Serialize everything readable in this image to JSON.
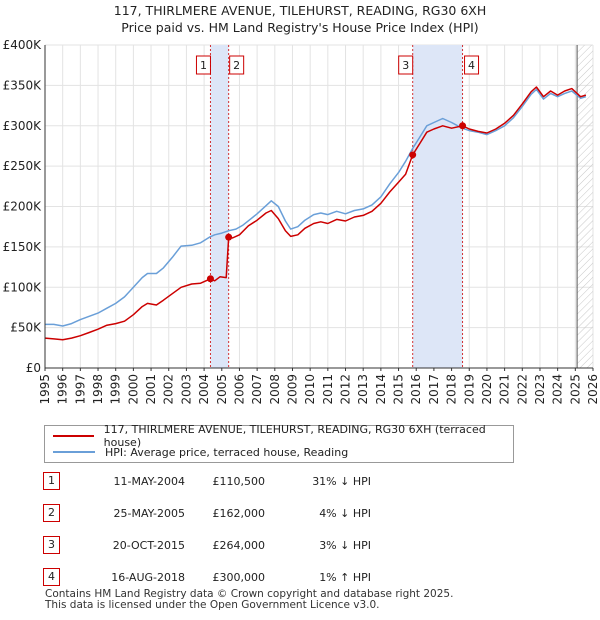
{
  "chart_data": {
    "type": "line",
    "title_line1": "117, THIRLMERE AVENUE, TILEHURST, READING, RG30 6XH",
    "title_line2": "Price paid vs. HM Land Registry's House Price Index (HPI)",
    "xlim": [
      1995,
      2026
    ],
    "ylim": [
      0,
      400000
    ],
    "y_ticks": [
      {
        "value": 0,
        "label": "£0"
      },
      {
        "value": 50000,
        "label": "£50K"
      },
      {
        "value": 100000,
        "label": "£100K"
      },
      {
        "value": 150000,
        "label": "£150K"
      },
      {
        "value": 200000,
        "label": "£200K"
      },
      {
        "value": 250000,
        "label": "£250K"
      },
      {
        "value": 300000,
        "label": "£300K"
      },
      {
        "value": 350000,
        "label": "£350K"
      },
      {
        "value": 400000,
        "label": "£400K"
      }
    ],
    "x_ticks": [
      "1995",
      "1996",
      "1997",
      "1998",
      "1999",
      "2000",
      "2001",
      "2002",
      "2003",
      "2004",
      "2005",
      "2006",
      "2007",
      "2008",
      "2009",
      "2010",
      "2011",
      "2012",
      "2013",
      "2014",
      "2015",
      "2016",
      "2017",
      "2018",
      "2019",
      "2020",
      "2021",
      "2022",
      "2023",
      "2024",
      "2025",
      "2026"
    ],
    "series": [
      {
        "name": "117, THIRLMERE AVENUE, TILEHURST, READING, RG30 6XH (terraced house)",
        "color": "#cc0000",
        "points": [
          [
            1995.0,
            37000
          ],
          [
            1995.5,
            36000
          ],
          [
            1996.0,
            35000
          ],
          [
            1996.5,
            37000
          ],
          [
            1997.0,
            40000
          ],
          [
            1997.5,
            44000
          ],
          [
            1998.0,
            48000
          ],
          [
            1998.5,
            53000
          ],
          [
            1999.0,
            55000
          ],
          [
            1999.5,
            58000
          ],
          [
            2000.0,
            66000
          ],
          [
            2000.5,
            76000
          ],
          [
            2000.8,
            80000
          ],
          [
            2001.3,
            78000
          ],
          [
            2001.7,
            84000
          ],
          [
            2002.2,
            92000
          ],
          [
            2002.7,
            100000
          ],
          [
            2003.3,
            104000
          ],
          [
            2003.8,
            105000
          ],
          [
            2004.36,
            110500
          ],
          [
            2004.6,
            108000
          ],
          [
            2004.9,
            113000
          ],
          [
            2005.25,
            112000
          ],
          [
            2005.39,
            162000
          ],
          [
            2005.6,
            161000
          ],
          [
            2006.0,
            165000
          ],
          [
            2006.5,
            176000
          ],
          [
            2007.0,
            183000
          ],
          [
            2007.5,
            192000
          ],
          [
            2007.8,
            195000
          ],
          [
            2008.2,
            185000
          ],
          [
            2008.6,
            170000
          ],
          [
            2008.9,
            163000
          ],
          [
            2009.3,
            165000
          ],
          [
            2009.7,
            173000
          ],
          [
            2010.2,
            179000
          ],
          [
            2010.6,
            181000
          ],
          [
            2011.0,
            179000
          ],
          [
            2011.5,
            184000
          ],
          [
            2012.0,
            182000
          ],
          [
            2012.5,
            187000
          ],
          [
            2013.0,
            189000
          ],
          [
            2013.5,
            194000
          ],
          [
            2014.0,
            204000
          ],
          [
            2014.5,
            218000
          ],
          [
            2015.0,
            230000
          ],
          [
            2015.4,
            240000
          ],
          [
            2015.8,
            264000
          ],
          [
            2016.2,
            278000
          ],
          [
            2016.6,
            292000
          ],
          [
            2017.0,
            296000
          ],
          [
            2017.5,
            300000
          ],
          [
            2018.0,
            297000
          ],
          [
            2018.62,
            300000
          ],
          [
            2019.0,
            296000
          ],
          [
            2019.5,
            293000
          ],
          [
            2020.0,
            291000
          ],
          [
            2020.5,
            296000
          ],
          [
            2021.0,
            303000
          ],
          [
            2021.5,
            313000
          ],
          [
            2022.0,
            327000
          ],
          [
            2022.5,
            342000
          ],
          [
            2022.8,
            348000
          ],
          [
            2023.2,
            336000
          ],
          [
            2023.6,
            343000
          ],
          [
            2024.0,
            338000
          ],
          [
            2024.4,
            343000
          ],
          [
            2024.8,
            346000
          ],
          [
            2025.3,
            336000
          ],
          [
            2025.6,
            338000
          ]
        ]
      },
      {
        "name": "HPI: Average price, terraced house, Reading",
        "color": "#6a9fd8",
        "points": [
          [
            1995.0,
            54000
          ],
          [
            1995.5,
            54000
          ],
          [
            1996.0,
            52000
          ],
          [
            1996.5,
            55000
          ],
          [
            1997.0,
            60000
          ],
          [
            1997.5,
            64000
          ],
          [
            1998.0,
            68000
          ],
          [
            1998.5,
            74000
          ],
          [
            1999.0,
            80000
          ],
          [
            1999.5,
            88000
          ],
          [
            2000.0,
            100000
          ],
          [
            2000.5,
            112000
          ],
          [
            2000.8,
            117000
          ],
          [
            2001.3,
            117000
          ],
          [
            2001.7,
            124000
          ],
          [
            2002.2,
            137000
          ],
          [
            2002.7,
            151000
          ],
          [
            2003.3,
            152000
          ],
          [
            2003.8,
            155000
          ],
          [
            2004.3,
            162000
          ],
          [
            2004.6,
            165000
          ],
          [
            2005.0,
            167000
          ],
          [
            2005.4,
            170000
          ],
          [
            2005.8,
            172000
          ],
          [
            2006.2,
            177000
          ],
          [
            2006.6,
            184000
          ],
          [
            2007.0,
            191000
          ],
          [
            2007.5,
            201000
          ],
          [
            2007.8,
            207000
          ],
          [
            2008.2,
            200000
          ],
          [
            2008.6,
            182000
          ],
          [
            2008.9,
            172000
          ],
          [
            2009.3,
            175000
          ],
          [
            2009.7,
            183000
          ],
          [
            2010.2,
            190000
          ],
          [
            2010.6,
            192000
          ],
          [
            2011.0,
            190000
          ],
          [
            2011.5,
            194000
          ],
          [
            2012.0,
            191000
          ],
          [
            2012.5,
            195000
          ],
          [
            2013.0,
            197000
          ],
          [
            2013.5,
            202000
          ],
          [
            2014.0,
            212000
          ],
          [
            2014.5,
            228000
          ],
          [
            2015.0,
            242000
          ],
          [
            2015.4,
            256000
          ],
          [
            2015.8,
            272000
          ],
          [
            2016.2,
            286000
          ],
          [
            2016.6,
            300000
          ],
          [
            2017.0,
            304000
          ],
          [
            2017.5,
            309000
          ],
          [
            2018.0,
            304000
          ],
          [
            2018.6,
            297000
          ],
          [
            2019.0,
            294000
          ],
          [
            2019.5,
            292000
          ],
          [
            2020.0,
            289000
          ],
          [
            2020.5,
            294000
          ],
          [
            2021.0,
            300000
          ],
          [
            2021.5,
            310000
          ],
          [
            2022.0,
            324000
          ],
          [
            2022.5,
            339000
          ],
          [
            2022.8,
            345000
          ],
          [
            2023.2,
            333000
          ],
          [
            2023.6,
            340000
          ],
          [
            2024.0,
            336000
          ],
          [
            2024.4,
            340000
          ],
          [
            2024.8,
            343000
          ],
          [
            2025.3,
            334000
          ],
          [
            2025.6,
            336000
          ]
        ]
      }
    ],
    "sales": [
      {
        "label": "1",
        "x": 2004.36,
        "price": 110500
      },
      {
        "label": "2",
        "x": 2005.39,
        "price": 162000
      },
      {
        "label": "3",
        "x": 2015.8,
        "price": 264000
      },
      {
        "label": "4",
        "x": 2018.62,
        "price": 300000
      }
    ],
    "shaded_ranges": [
      [
        2004.36,
        2005.39
      ],
      [
        2015.8,
        2018.62
      ]
    ],
    "future_hatch_start": 2025.1
  },
  "legend": {
    "property_label": "117, THIRLMERE AVENUE, TILEHURST, READING, RG30 6XH (terraced house)",
    "hpi_label": "HPI: Average price, terraced house, Reading"
  },
  "sales_table": [
    {
      "num": "1",
      "date": "11-MAY-2004",
      "price": "£110,500",
      "hpi": "31% ↓ HPI"
    },
    {
      "num": "2",
      "date": "25-MAY-2005",
      "price": "£162,000",
      "hpi": "4% ↓ HPI"
    },
    {
      "num": "3",
      "date": "20-OCT-2015",
      "price": "£264,000",
      "hpi": "3% ↓ HPI"
    },
    {
      "num": "4",
      "date": "16-AUG-2018",
      "price": "£300,000",
      "hpi": "1% ↑ HPI"
    }
  ],
  "footer": {
    "line1": "Contains HM Land Registry data © Crown copyright and database right 2025.",
    "line2": "This data is licensed under the Open Government Licence v3.0."
  },
  "colors": {
    "property": "#cc0000",
    "hpi": "#6a9fd8",
    "shade": "#dde6f7"
  }
}
